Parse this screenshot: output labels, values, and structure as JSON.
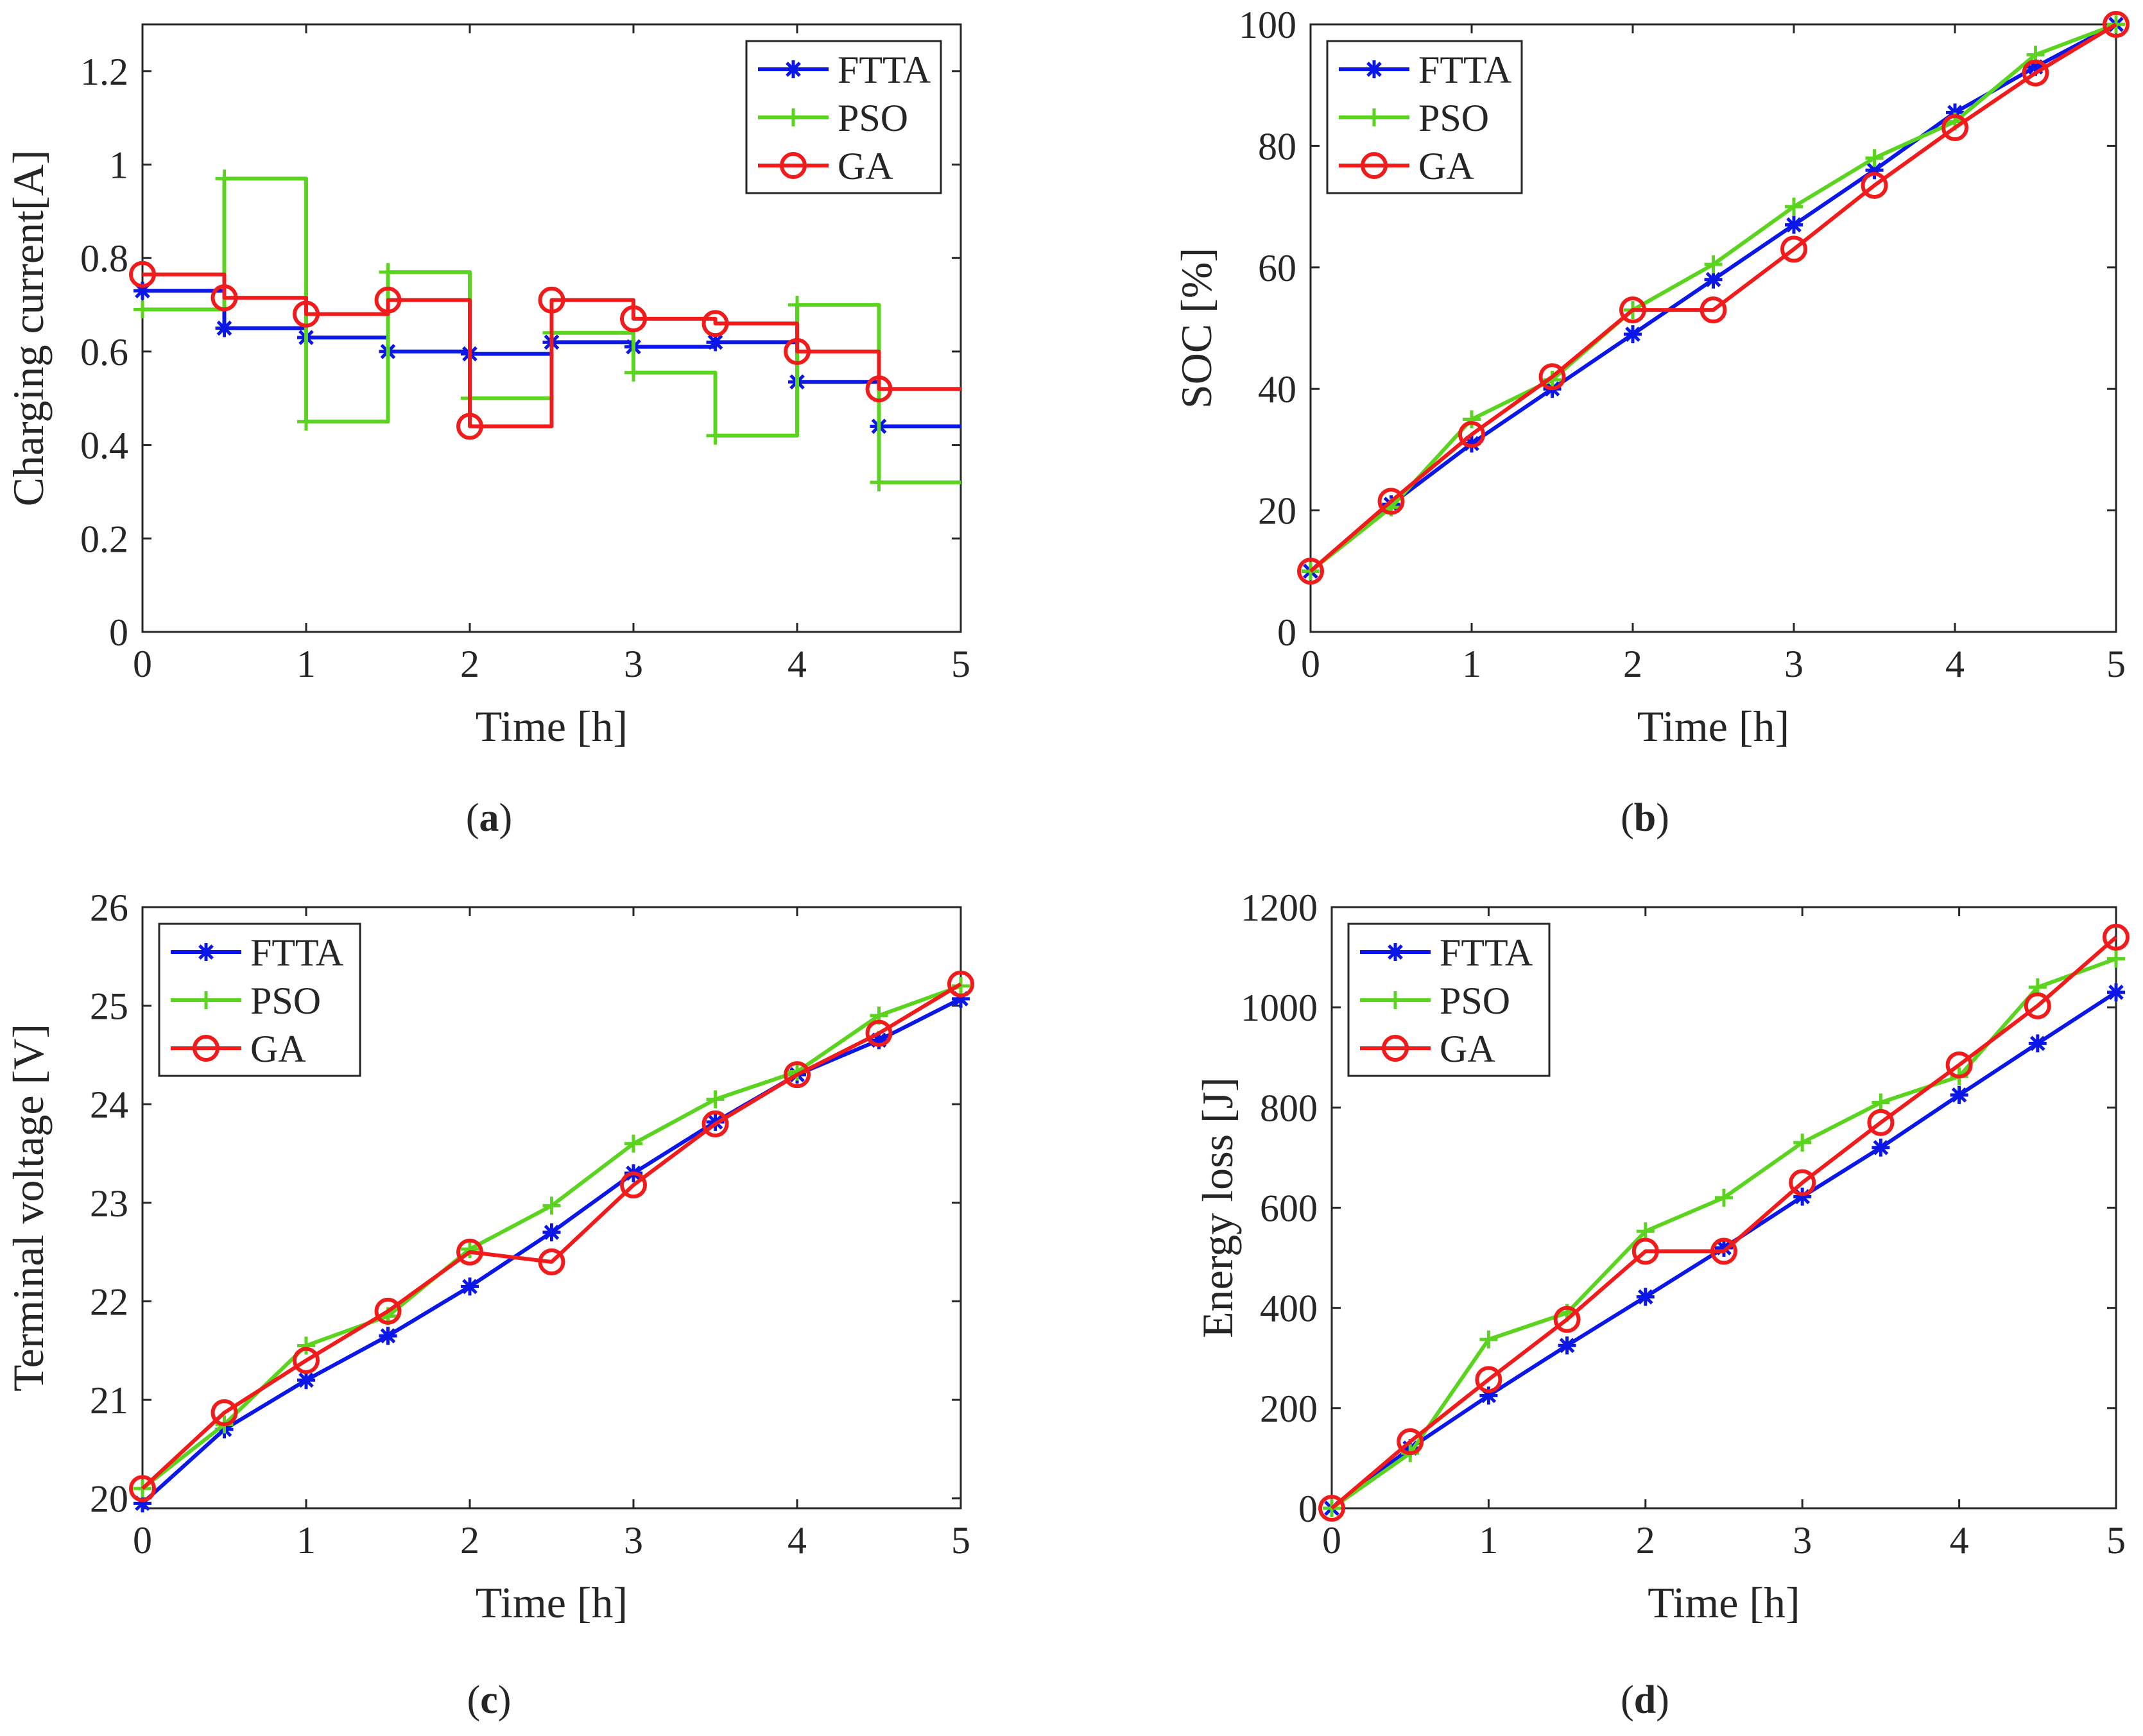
{
  "colors": {
    "FTTA": "#0a17e8",
    "PSO": "#5ad41e",
    "GA": "#f21b1b",
    "axis": "#262626"
  },
  "captions": [
    {
      "open": "(",
      "letter": "a",
      "close": ")"
    },
    {
      "open": "(",
      "letter": "b",
      "close": ")"
    },
    {
      "open": "(",
      "letter": "c",
      "close": ")"
    },
    {
      "open": "(",
      "letter": "d",
      "close": ")"
    }
  ],
  "chart_data": [
    {
      "id": "a",
      "type": "line",
      "step": true,
      "xlabel": "Time [h]",
      "ylabel": "Charging current[A]",
      "xlim": [
        0,
        5
      ],
      "ylim": [
        0,
        1.3
      ],
      "xticks": [
        "0",
        "1",
        "2",
        "3",
        "4",
        "5"
      ],
      "xtick_values": [
        0,
        1,
        2,
        3,
        4,
        5
      ],
      "yticks": [
        "0",
        "0.2",
        "0.4",
        "0.6",
        "0.8",
        "1",
        "1.2"
      ],
      "ytick_values": [
        0,
        0.2,
        0.4,
        0.6,
        0.8,
        1.0,
        1.2
      ],
      "legend_position": "top-right",
      "x": [
        0,
        0.5,
        1,
        1.5,
        2,
        2.5,
        3,
        3.5,
        4,
        4.5,
        5
      ],
      "series": [
        {
          "name": "FTTA",
          "marker": "asterisk",
          "values": [
            0.73,
            0.65,
            0.63,
            0.6,
            0.595,
            0.62,
            0.61,
            0.62,
            0.535,
            0.44,
            0.44
          ]
        },
        {
          "name": "PSO",
          "marker": "plus",
          "values": [
            0.69,
            0.97,
            0.45,
            0.77,
            0.5,
            0.64,
            0.555,
            0.42,
            0.7,
            0.32,
            0.32
          ]
        },
        {
          "name": "GA",
          "marker": "circle",
          "values": [
            0.765,
            0.715,
            0.68,
            0.71,
            0.44,
            0.71,
            0.67,
            0.66,
            0.6,
            0.52,
            0.52
          ]
        }
      ]
    },
    {
      "id": "b",
      "type": "line",
      "step": false,
      "xlabel": "Time [h]",
      "ylabel": "SOC [%]",
      "xlim": [
        0,
        5
      ],
      "ylim": [
        0,
        100
      ],
      "xticks": [
        "0",
        "1",
        "2",
        "3",
        "4",
        "5"
      ],
      "xtick_values": [
        0,
        1,
        2,
        3,
        4,
        5
      ],
      "yticks": [
        "0",
        "20",
        "40",
        "60",
        "80",
        "100"
      ],
      "ytick_values": [
        0,
        20,
        40,
        60,
        80,
        100
      ],
      "legend_position": "top-left",
      "x": [
        0,
        0.5,
        1,
        1.5,
        2,
        2.5,
        3,
        3.5,
        4,
        4.5,
        5
      ],
      "series": [
        {
          "name": "FTTA",
          "marker": "asterisk",
          "values": [
            10,
            21,
            31,
            40,
            49,
            58,
            67,
            76,
            85.5,
            93,
            100
          ]
        },
        {
          "name": "PSO",
          "marker": "plus",
          "values": [
            10,
            20.5,
            35,
            41.5,
            53,
            60.5,
            70,
            78,
            84,
            95,
            100
          ]
        },
        {
          "name": "GA",
          "marker": "circle",
          "values": [
            10,
            21.5,
            32.5,
            42,
            53,
            53,
            63,
            73.5,
            83,
            92,
            100
          ]
        }
      ]
    },
    {
      "id": "c",
      "type": "line",
      "step": false,
      "xlabel": "Time [h]",
      "ylabel": "Terminal voltage [V]",
      "xlim": [
        0,
        5
      ],
      "ylim": [
        19.9,
        26
      ],
      "xticks": [
        "0",
        "1",
        "2",
        "3",
        "4",
        "5"
      ],
      "xtick_values": [
        0,
        1,
        2,
        3,
        4,
        5
      ],
      "yticks": [
        "20",
        "21",
        "22",
        "23",
        "24",
        "25",
        "26"
      ],
      "ytick_values": [
        20,
        21,
        22,
        23,
        24,
        25,
        26
      ],
      "legend_position": "top-left",
      "x": [
        0,
        0.5,
        1,
        1.5,
        2,
        2.5,
        3,
        3.5,
        4,
        4.5,
        5
      ],
      "series": [
        {
          "name": "FTTA",
          "marker": "asterisk",
          "values": [
            19.95,
            20.7,
            21.2,
            21.65,
            22.15,
            22.7,
            23.3,
            23.82,
            24.3,
            24.65,
            25.07
          ]
        },
        {
          "name": "PSO",
          "marker": "plus",
          "values": [
            20.1,
            20.75,
            21.55,
            21.85,
            22.53,
            22.97,
            23.6,
            24.05,
            24.33,
            24.9,
            25.2
          ]
        },
        {
          "name": "GA",
          "marker": "circle",
          "values": [
            20.1,
            20.87,
            21.4,
            21.9,
            22.5,
            22.4,
            23.18,
            23.8,
            24.3,
            24.72,
            25.22
          ]
        }
      ]
    },
    {
      "id": "d",
      "type": "line",
      "step": false,
      "xlabel": "Time [h]",
      "ylabel": "Energy loss [J]",
      "xlim": [
        0,
        5
      ],
      "ylim": [
        0,
        1200
      ],
      "xticks": [
        "0",
        "1",
        "2",
        "3",
        "4",
        "5"
      ],
      "xtick_values": [
        0,
        1,
        2,
        3,
        4,
        5
      ],
      "yticks": [
        "0",
        "200",
        "400",
        "600",
        "800",
        "1000",
        "1200"
      ],
      "ytick_values": [
        0,
        200,
        400,
        600,
        800,
        1000,
        1200
      ],
      "legend_position": "top-left",
      "x": [
        0,
        0.5,
        1,
        1.5,
        2,
        2.5,
        3,
        3.5,
        4,
        4.5,
        5
      ],
      "series": [
        {
          "name": "FTTA",
          "marker": "asterisk",
          "values": [
            0,
            120,
            225,
            325,
            422,
            520,
            622,
            720,
            825,
            928,
            1030
          ]
        },
        {
          "name": "PSO",
          "marker": "plus",
          "values": [
            0,
            110,
            337,
            390,
            553,
            620,
            730,
            810,
            862,
            1040,
            1097
          ]
        },
        {
          "name": "GA",
          "marker": "circle",
          "values": [
            0,
            133,
            257,
            377,
            513,
            513,
            650,
            770,
            885,
            1003,
            1140
          ]
        }
      ]
    }
  ]
}
